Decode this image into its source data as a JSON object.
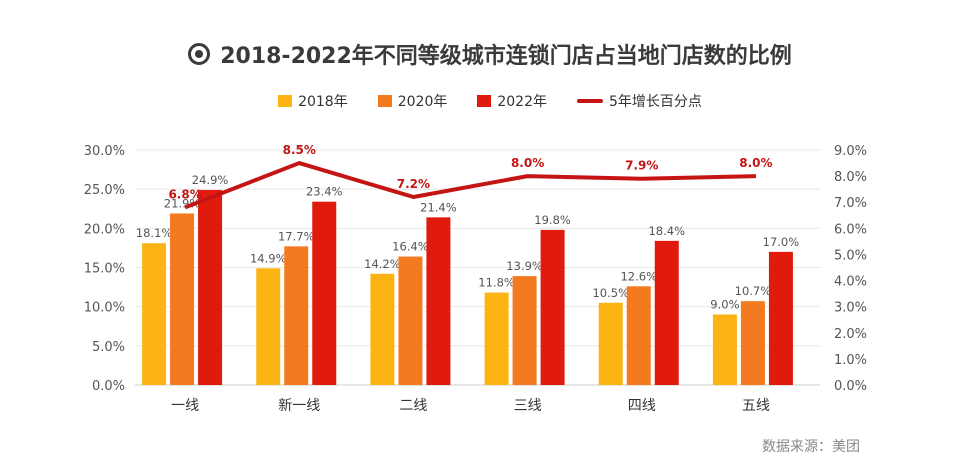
{
  "title": "2018-2022年不同等级城市连锁门店占当地门店数的比例",
  "source": "数据来源：美团",
  "colors": {
    "s2018": "#fbb414",
    "s2020": "#f47a20",
    "s2022": "#e01b0d",
    "line": "#c41414",
    "grid": "#e8e8e8",
    "axis_text": "#555555"
  },
  "chart_data": {
    "type": "bar",
    "title": "2018-2022年不同等级城市连锁门店占当地门店数的比例",
    "categories": [
      "一线",
      "新一线",
      "二线",
      "三线",
      "四线",
      "五线"
    ],
    "series": [
      {
        "name": "2018年",
        "values": [
          18.1,
          14.9,
          14.2,
          11.8,
          10.5,
          9.0
        ]
      },
      {
        "name": "2020年",
        "values": [
          21.9,
          17.7,
          16.4,
          13.9,
          12.6,
          10.7
        ]
      },
      {
        "name": "2022年",
        "values": [
          24.9,
          23.4,
          21.4,
          19.8,
          18.4,
          17.0
        ]
      }
    ],
    "line_series": {
      "name": "5年增长百分点",
      "values": [
        6.8,
        8.5,
        7.2,
        8.0,
        7.9,
        8.0
      ]
    },
    "y_left": {
      "ticks": [
        "0.0%",
        "5.0%",
        "10.0%",
        "15.0%",
        "20.0%",
        "25.0%",
        "30.0%"
      ],
      "ylim": [
        0,
        30
      ]
    },
    "y_right": {
      "ticks": [
        "0.0%",
        "1.0%",
        "2.0%",
        "3.0%",
        "4.0%",
        "5.0%",
        "6.0%",
        "7.0%",
        "8.0%",
        "9.0%"
      ],
      "ylim": [
        0,
        9
      ]
    },
    "grid": true,
    "legend": "top-center"
  }
}
